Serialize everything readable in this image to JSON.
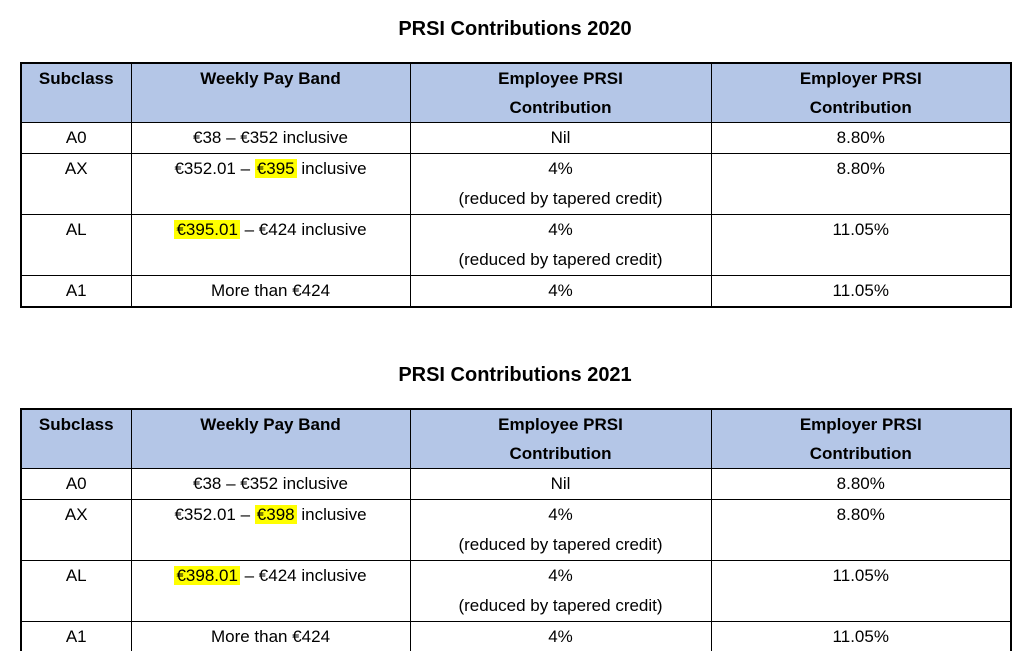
{
  "colors": {
    "header_bg": "#B4C6E7",
    "highlight": "#FFFF00",
    "border": "#000000",
    "page_bg": "#FFFFFF"
  },
  "tables": [
    {
      "title": "PRSI Contributions 2020",
      "headers": [
        {
          "line1": "Subclass",
          "line2": ""
        },
        {
          "line1": "Weekly Pay Band",
          "line2": ""
        },
        {
          "line1": "Employee PRSI",
          "line2": "Contribution"
        },
        {
          "line1": "Employer PRSI",
          "line2": "Contribution"
        }
      ],
      "rows": [
        {
          "subclass": "A0",
          "band_pre": "€38 – €352 inclusive",
          "band_hl": "",
          "band_post": "",
          "employee_1": "Nil",
          "employee_2": "",
          "employer": "8.80%"
        },
        {
          "subclass": "AX",
          "band_pre": "€352.01 – ",
          "band_hl": "€395",
          "band_post": " inclusive",
          "employee_1": "4%",
          "employee_2": "(reduced by tapered credit)",
          "employer": "8.80%"
        },
        {
          "subclass": "AL",
          "band_pre": "",
          "band_hl": "€395.01",
          "band_post": " – €424 inclusive",
          "employee_1": "4%",
          "employee_2": "(reduced by tapered credit)",
          "employer": "11.05%"
        },
        {
          "subclass": "A1",
          "band_pre": "More than €424",
          "band_hl": "",
          "band_post": "",
          "employee_1": "4%",
          "employee_2": "",
          "employer": "11.05%"
        }
      ]
    },
    {
      "title": "PRSI Contributions 2021",
      "headers": [
        {
          "line1": "Subclass",
          "line2": ""
        },
        {
          "line1": "Weekly Pay Band",
          "line2": ""
        },
        {
          "line1": "Employee PRSI",
          "line2": "Contribution"
        },
        {
          "line1": "Employer PRSI",
          "line2": "Contribution"
        }
      ],
      "rows": [
        {
          "subclass": "A0",
          "band_pre": "€38 – €352 inclusive",
          "band_hl": "",
          "band_post": "",
          "employee_1": "Nil",
          "employee_2": "",
          "employer": "8.80%"
        },
        {
          "subclass": "AX",
          "band_pre": "€352.01 – ",
          "band_hl": "€398",
          "band_post": " inclusive",
          "employee_1": "4%",
          "employee_2": "(reduced by tapered credit)",
          "employer": "8.80%"
        },
        {
          "subclass": "AL",
          "band_pre": "",
          "band_hl": "€398.01",
          "band_post": " – €424 inclusive",
          "employee_1": "4%",
          "employee_2": "(reduced by tapered credit)",
          "employer": "11.05%"
        },
        {
          "subclass": "A1",
          "band_pre": "More than €424",
          "band_hl": "",
          "band_post": "",
          "employee_1": "4%",
          "employee_2": "",
          "employer": "11.05%"
        }
      ]
    }
  ]
}
